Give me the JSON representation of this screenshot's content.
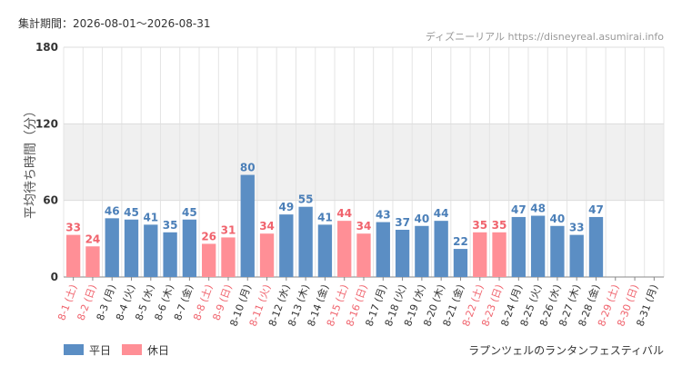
{
  "header": {
    "period": "集計期間：2026-08-01～2026-08-31",
    "source": "ディズニーリアル https://disneyreal.asumirai.info"
  },
  "footer": {
    "attraction": "ラプンツェルのランタンフェスティバル"
  },
  "colors": {
    "weekday": "#5b8ec4",
    "holiday": "#ff8f96",
    "weekday_label": "#4b7fb8",
    "holiday_label": "#f0636d",
    "weekday_tick": "#333333",
    "holiday_tick": "#f0636d",
    "band": "#f0f0f0"
  },
  "chart_data": {
    "type": "bar",
    "ylabel": "平均待ち時間（分）",
    "ylim": [
      0,
      180
    ],
    "yticks": [
      0,
      60,
      120,
      180
    ],
    "grid": true,
    "shaded_band": [
      60,
      120
    ],
    "legend_position": "bottom-left",
    "legend": [
      {
        "name": "平日",
        "kind": "weekday"
      },
      {
        "name": "休日",
        "kind": "holiday"
      }
    ],
    "categories": [
      "8-1 (土)",
      "8-2 (日)",
      "8-3 (月)",
      "8-4 (火)",
      "8-5 (水)",
      "8-6 (木)",
      "8-7 (金)",
      "8-8 (土)",
      "8-9 (日)",
      "8-10 (月)",
      "8-11 (火)",
      "8-12 (水)",
      "8-13 (木)",
      "8-14 (金)",
      "8-15 (土)",
      "8-16 (日)",
      "8-17 (月)",
      "8-18 (火)",
      "8-19 (水)",
      "8-20 (木)",
      "8-21 (金)",
      "8-22 (土)",
      "8-23 (日)",
      "8-24 (月)",
      "8-25 (火)",
      "8-26 (水)",
      "8-27 (木)",
      "8-28 (金)",
      "8-29 (土)",
      "8-30 (日)",
      "8-31 (月)"
    ],
    "values": [
      33,
      24,
      46,
      45,
      41,
      35,
      45,
      26,
      31,
      80,
      34,
      49,
      55,
      41,
      44,
      34,
      43,
      37,
      40,
      44,
      22,
      35,
      35,
      47,
      48,
      40,
      33,
      47,
      null,
      null,
      null
    ],
    "day_type": [
      "holiday",
      "holiday",
      "weekday",
      "weekday",
      "weekday",
      "weekday",
      "weekday",
      "holiday",
      "holiday",
      "weekday",
      "holiday",
      "weekday",
      "weekday",
      "weekday",
      "holiday",
      "holiday",
      "weekday",
      "weekday",
      "weekday",
      "weekday",
      "weekday",
      "holiday",
      "holiday",
      "weekday",
      "weekday",
      "weekday",
      "weekday",
      "weekday",
      "holiday",
      "holiday",
      "weekday"
    ]
  }
}
